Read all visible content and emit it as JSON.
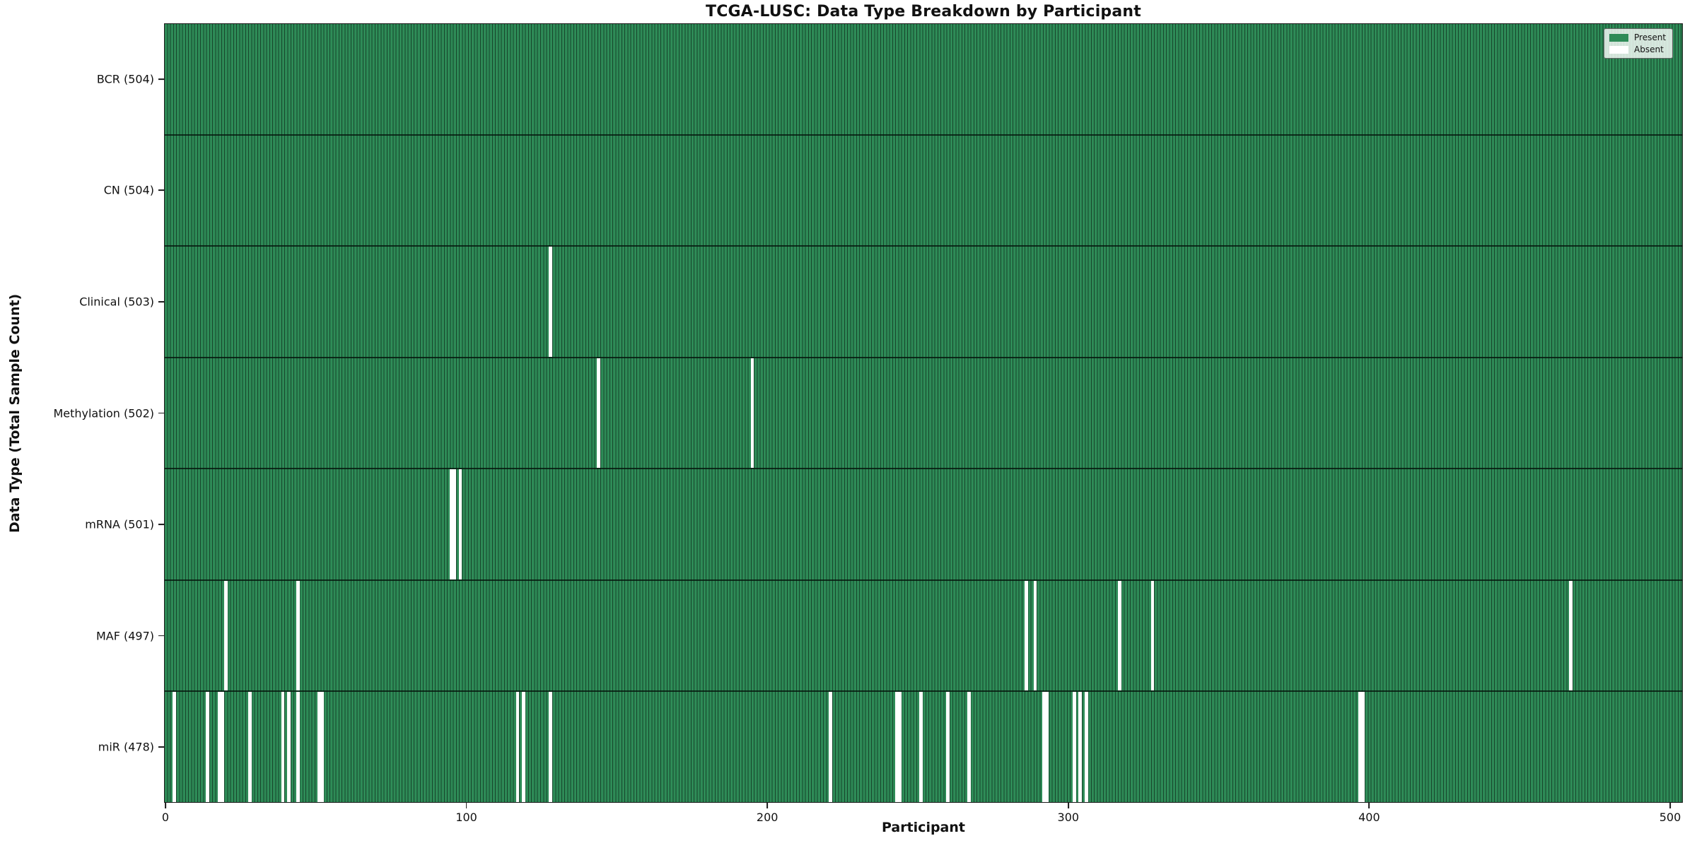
{
  "title": "TCGA-LUSC: Data Type Breakdown by Participant",
  "x_axis": {
    "label": "Participant",
    "ticks": [
      0,
      100,
      200,
      300,
      400,
      500
    ]
  },
  "y_axis": {
    "label": "Data Type (Total Sample Count)"
  },
  "legend": {
    "items": [
      {
        "label": "Present",
        "color": "#2e8b57"
      },
      {
        "label": "Absent",
        "color": "#ffffff"
      }
    ]
  },
  "colors": {
    "present": "#2e8b57",
    "absent": "#ffffff",
    "bar_edge": "rgba(0,0,0,0.5)",
    "axis": "#1a1a1a"
  },
  "chart_data": {
    "type": "heatmap",
    "title": "TCGA-LUSC: Data Type Breakdown by Participant",
    "xlabel": "Participant",
    "ylabel": "Data Type (Total Sample Count)",
    "x_range": [
      0,
      504
    ],
    "n_participants": 504,
    "legend_position": "upper right",
    "value_encoding": {
      "present": "green cell",
      "absent": "white cell"
    },
    "rows": [
      {
        "name": "BCR",
        "label": "BCR (504)",
        "total": 504,
        "absent": []
      },
      {
        "name": "CN",
        "label": "CN (504)",
        "total": 504,
        "absent": []
      },
      {
        "name": "Clinical",
        "label": "Clinical (503)",
        "total": 503,
        "absent": [
          128
        ]
      },
      {
        "name": "Methylation",
        "label": "Methylation (502)",
        "total": 502,
        "absent": [
          144,
          195
        ]
      },
      {
        "name": "mRNA",
        "label": "mRNA (501)",
        "total": 501,
        "absent": [
          95,
          96,
          98
        ]
      },
      {
        "name": "MAF",
        "label": "MAF (497)",
        "total": 497,
        "absent": [
          20,
          44,
          286,
          289,
          317,
          328,
          467
        ]
      },
      {
        "name": "miR",
        "label": "miR (478)",
        "total": 478,
        "absent": [
          3,
          14,
          18,
          19,
          28,
          39,
          41,
          44,
          51,
          52,
          117,
          119,
          128,
          221,
          243,
          244,
          251,
          260,
          267,
          292,
          293,
          302,
          304,
          306,
          397,
          398
        ]
      }
    ]
  }
}
